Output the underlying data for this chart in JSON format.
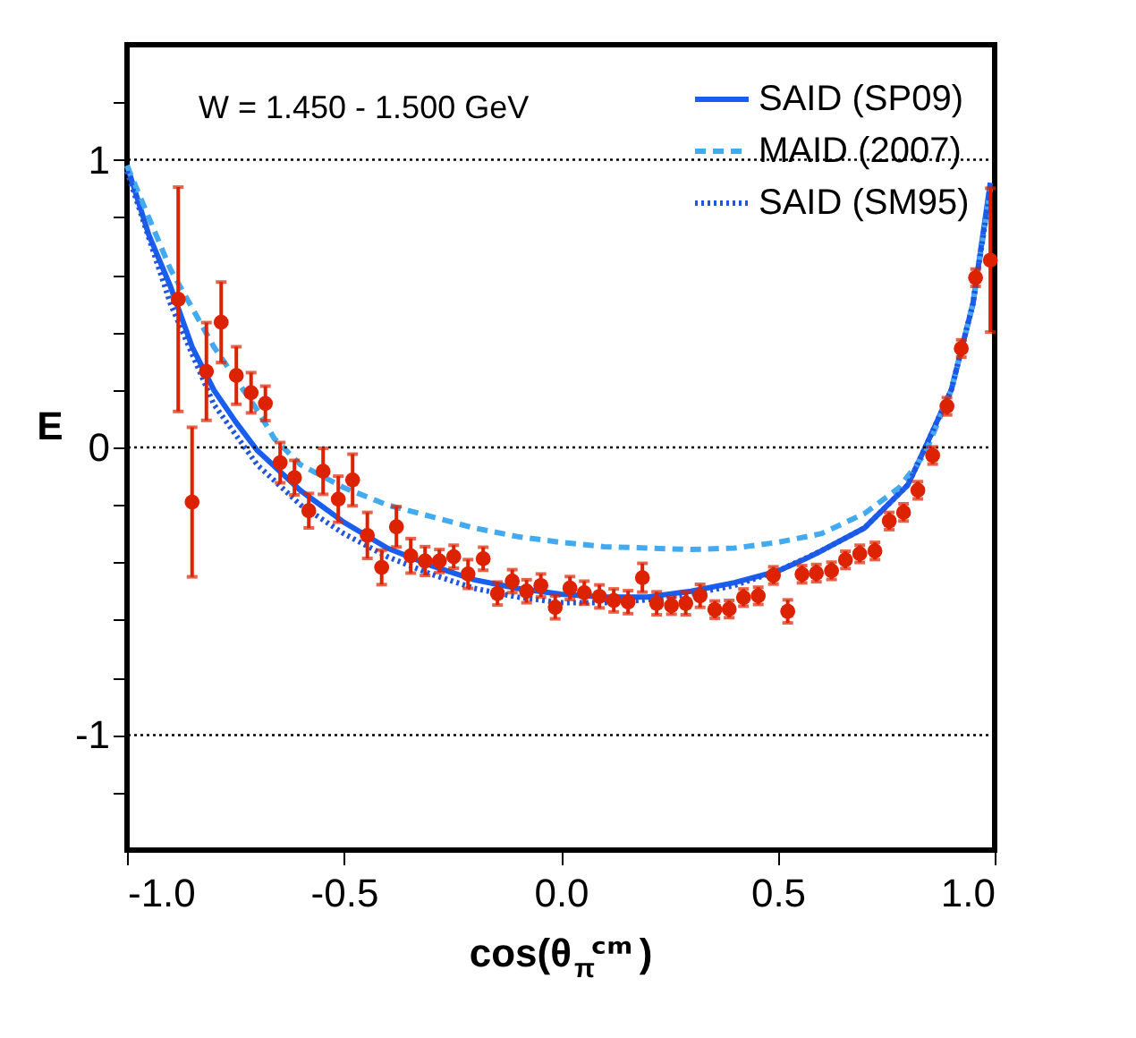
{
  "chart_data": {
    "type": "line",
    "xlabel": "cos(θ$_{π}$ᶜᵐ)",
    "ylabel": "E",
    "annotations": [
      "W =  1.450 -  1.500 GeV"
    ],
    "xlim": [
      -1,
      1
    ],
    "xticks": [
      {
        "value": -1,
        "label": "-1.0"
      },
      {
        "value": -0.5,
        "label": "-0.5"
      },
      {
        "value": 0,
        "label": "0.0"
      },
      {
        "value": 0.5,
        "label": "0.5"
      },
      {
        "value": 1,
        "label": "1.0"
      }
    ],
    "ylim": [
      -1.4,
      1.4
    ],
    "yticks": [
      {
        "value": -1.2,
        "label": null
      },
      -1,
      {
        "value": -0.8,
        "label": null
      },
      {
        "value": -0.6,
        "label": null
      },
      {
        "value": -0.4,
        "label": null
      },
      {
        "value": -0.2,
        "label": null
      },
      0,
      {
        "value": 0.2,
        "label": null
      },
      {
        "value": 0.4,
        "label": null
      },
      {
        "value": 0.6,
        "label": null
      },
      {
        "value": 0.8,
        "label": null
      },
      1,
      {
        "value": 1.2,
        "label": null
      }
    ],
    "grid": false,
    "legend": "top right",
    "ref_lines": [
      {
        "axis": "y",
        "value": 1,
        "line_style": "dotted",
        "color": "#000000"
      },
      {
        "axis": "y",
        "value": 0,
        "line_style": "dotted",
        "color": "#000000"
      },
      {
        "axis": "y",
        "value": -1,
        "line_style": "dotted",
        "color": "#000000"
      }
    ],
    "series": [
      {
        "name": "SAID (SP09)",
        "type": "line",
        "line_style": "solid",
        "color": "#1a5ef0",
        "x": [
          -1,
          -0.95,
          -0.9,
          -0.85,
          -0.8,
          -0.75,
          -0.7,
          -0.6,
          -0.5,
          -0.4,
          -0.3,
          -0.2,
          -0.1,
          0,
          0.1,
          0.2,
          0.3,
          0.4,
          0.5,
          0.56,
          0.6,
          0.7,
          0.8,
          0.84,
          0.9,
          0.95,
          0.99
        ],
        "values": [
          0.98,
          0.74,
          0.56,
          0.35,
          0.2,
          0.09,
          -0.01,
          -0.15,
          -0.26,
          -0.35,
          -0.41,
          -0.46,
          -0.49,
          -0.51,
          -0.52,
          -0.52,
          -0.5,
          -0.47,
          -0.43,
          -0.39,
          -0.36,
          -0.28,
          -0.13,
          0,
          0.2,
          0.5,
          0.92
        ]
      },
      {
        "name": "MAID (2007)",
        "type": "line",
        "line_style": "dashed",
        "color": "#44aaf0",
        "x": [
          -1,
          -0.9,
          -0.8,
          -0.7,
          -0.66,
          -0.6,
          -0.5,
          -0.4,
          -0.3,
          -0.2,
          -0.1,
          0,
          0.1,
          0.2,
          0.3,
          0.4,
          0.5,
          0.6,
          0.7,
          0.78,
          0.84,
          0.9,
          0.95,
          0.99
        ],
        "values": [
          0.98,
          0.62,
          0.35,
          0.13,
          0.03,
          -0.06,
          -0.14,
          -0.2,
          -0.24,
          -0.28,
          -0.31,
          -0.33,
          -0.345,
          -0.35,
          -0.355,
          -0.35,
          -0.33,
          -0.3,
          -0.23,
          -0.14,
          -0.02,
          0.2,
          0.5,
          0.9
        ]
      },
      {
        "name": "SAID (SM95)",
        "type": "line",
        "line_style": "dotted",
        "color": "#2255dd",
        "x": [
          -1,
          -0.9,
          -0.8,
          -0.7,
          -0.6,
          -0.5,
          -0.4,
          -0.3,
          -0.2,
          -0.1,
          0,
          0.1,
          0.2,
          0.3,
          0.4,
          0.5,
          0.6,
          0.7,
          0.8,
          0.84,
          0.9,
          0.95,
          0.99
        ],
        "values": [
          0.96,
          0.5,
          0.15,
          -0.06,
          -0.2,
          -0.3,
          -0.38,
          -0.44,
          -0.49,
          -0.52,
          -0.54,
          -0.54,
          -0.53,
          -0.51,
          -0.48,
          -0.43,
          -0.36,
          -0.28,
          -0.13,
          0,
          0.2,
          0.5,
          0.9
        ]
      },
      {
        "type": "scatter",
        "marker": "circle",
        "color": "#dd2200",
        "x": [
          -0.882,
          -0.85,
          -0.817,
          -0.783,
          -0.748,
          -0.714,
          -0.681,
          -0.647,
          -0.614,
          -0.581,
          -0.548,
          -0.513,
          -0.48,
          -0.446,
          -0.413,
          -0.379,
          -0.346,
          -0.313,
          -0.28,
          -0.247,
          -0.214,
          -0.179,
          -0.146,
          -0.112,
          -0.079,
          -0.046,
          -0.013,
          0.021,
          0.054,
          0.089,
          0.122,
          0.155,
          0.188,
          0.221,
          0.255,
          0.288,
          0.321,
          0.355,
          0.388,
          0.421,
          0.455,
          0.49,
          0.523,
          0.556,
          0.589,
          0.624,
          0.656,
          0.689,
          0.724,
          0.757,
          0.79,
          0.823,
          0.857,
          0.89,
          0.923,
          0.956,
          0.99
        ],
        "values": [
          0.515,
          -0.19,
          0.264,
          0.435,
          0.25,
          0.19,
          0.153,
          -0.053,
          -0.105,
          -0.22,
          -0.083,
          -0.18,
          -0.113,
          -0.306,
          -0.417,
          -0.276,
          -0.377,
          -0.395,
          -0.395,
          -0.38,
          -0.44,
          -0.387,
          -0.508,
          -0.465,
          -0.5,
          -0.48,
          -0.556,
          -0.489,
          -0.505,
          -0.518,
          -0.532,
          -0.538,
          -0.453,
          -0.542,
          -0.55,
          -0.542,
          -0.516,
          -0.564,
          -0.562,
          -0.522,
          -0.516,
          -0.445,
          -0.57,
          -0.441,
          -0.437,
          -0.429,
          -0.391,
          -0.37,
          -0.36,
          -0.256,
          -0.226,
          -0.149,
          -0.028,
          0.143,
          0.344,
          0.59,
          0.651
        ],
        "errors": [
          0.39,
          0.26,
          0.17,
          0.14,
          0.1,
          0.07,
          0.06,
          0.07,
          0.06,
          0.06,
          0.08,
          0.08,
          0.09,
          0.08,
          0.06,
          0.07,
          0.06,
          0.05,
          0.04,
          0.04,
          0.05,
          0.04,
          0.04,
          0.04,
          0.04,
          0.04,
          0.04,
          0.04,
          0.04,
          0.04,
          0.04,
          0.04,
          0.05,
          0.04,
          0.03,
          0.04,
          0.04,
          0.03,
          0.03,
          0.03,
          0.03,
          0.03,
          0.04,
          0.03,
          0.03,
          0.03,
          0.03,
          0.03,
          0.03,
          0.03,
          0.03,
          0.03,
          0.03,
          0.03,
          0.03,
          0.03,
          0.25
        ]
      }
    ]
  }
}
